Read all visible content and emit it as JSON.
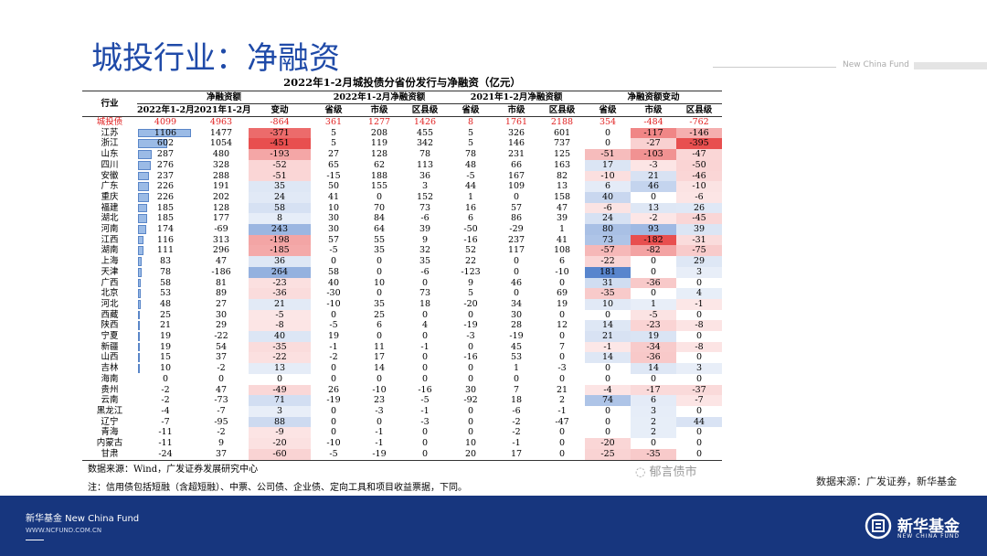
{
  "slide_title": "城投行业：净融资",
  "brand_top": "New China Fund",
  "table": {
    "title": "2022年1-2月城投债分省份发行与净融资（亿元）",
    "header_groups": [
      "行业",
      "净融资额",
      "2022年1-2月净融资额",
      "2021年1-2月净融资额",
      "净融资额变动"
    ],
    "columns": [
      "2022年1-2月",
      "2021年1-2月",
      "变动",
      "省级",
      "市级",
      "区县级",
      "省级",
      "市级",
      "区县级",
      "省级",
      "市级",
      "区县级"
    ],
    "rows": [
      [
        "城投债",
        4099,
        4963,
        -864,
        361,
        1277,
        1426,
        8,
        1761,
        2188,
        354,
        -484,
        -762
      ],
      [
        "江苏",
        1106,
        1477,
        -371,
        5,
        208,
        455,
        5,
        326,
        601,
        0,
        -117,
        -146
      ],
      [
        "浙江",
        602,
        1054,
        -451,
        5,
        119,
        342,
        5,
        146,
        737,
        0,
        -27,
        -395
      ],
      [
        "山东",
        287,
        480,
        -193,
        27,
        128,
        78,
        78,
        231,
        125,
        -51,
        -103,
        -47
      ],
      [
        "四川",
        276,
        328,
        -52,
        65,
        62,
        113,
        48,
        66,
        163,
        17,
        -3,
        -50
      ],
      [
        "安徽",
        237,
        288,
        -51,
        -15,
        188,
        36,
        -5,
        167,
        82,
        -10,
        21,
        -46
      ],
      [
        "广东",
        226,
        191,
        35,
        50,
        155,
        3,
        44,
        109,
        13,
        6,
        46,
        -10
      ],
      [
        "重庆",
        226,
        202,
        24,
        41,
        0,
        152,
        1,
        0,
        158,
        40,
        0,
        -6
      ],
      [
        "福建",
        185,
        128,
        58,
        10,
        70,
        73,
        16,
        57,
        47,
        -6,
        13,
        26
      ],
      [
        "湖北",
        185,
        177,
        8,
        30,
        84,
        -6,
        6,
        86,
        39,
        24,
        -2,
        -45
      ],
      [
        "河南",
        174,
        -69,
        243,
        30,
        64,
        39,
        -50,
        -29,
        1,
        80,
        93,
        39
      ],
      [
        "江西",
        116,
        313,
        -198,
        57,
        55,
        9,
        -16,
        237,
        41,
        73,
        -182,
        -31
      ],
      [
        "湖南",
        111,
        296,
        -185,
        -5,
        35,
        32,
        52,
        117,
        108,
        -57,
        -82,
        -75
      ],
      [
        "上海",
        83,
        47,
        36,
        0,
        0,
        35,
        22,
        0,
        6,
        -22,
        0,
        29
      ],
      [
        "天津",
        78,
        -186,
        264,
        58,
        0,
        -6,
        -123,
        0,
        -10,
        181,
        0,
        3
      ],
      [
        "广西",
        58,
        81,
        -23,
        40,
        10,
        0,
        9,
        46,
        0,
        31,
        -36,
        0
      ],
      [
        "北京",
        53,
        89,
        -36,
        -30,
        0,
        73,
        5,
        0,
        69,
        -35,
        0,
        4
      ],
      [
        "河北",
        48,
        27,
        21,
        -10,
        35,
        18,
        -20,
        34,
        19,
        10,
        1,
        -1
      ],
      [
        "西藏",
        25,
        30,
        -5,
        0,
        25,
        0,
        0,
        30,
        0,
        0,
        -5,
        0
      ],
      [
        "陕西",
        21,
        29,
        -8,
        -5,
        6,
        4,
        -19,
        28,
        12,
        14,
        -23,
        -8
      ],
      [
        "宁夏",
        19,
        -22,
        40,
        19,
        0,
        0,
        -3,
        -19,
        0,
        21,
        19,
        0
      ],
      [
        "新疆",
        19,
        54,
        -35,
        -1,
        11,
        -1,
        0,
        45,
        7,
        -1,
        -34,
        -8
      ],
      [
        "山西",
        15,
        37,
        -22,
        -2,
        17,
        0,
        -16,
        53,
        0,
        14,
        -36,
        0
      ],
      [
        "吉林",
        10,
        -2,
        13,
        0,
        14,
        0,
        0,
        1,
        -3,
        0,
        14,
        3
      ],
      [
        "海南",
        0,
        0,
        0,
        0,
        0,
        0,
        0,
        0,
        0,
        0,
        0,
        0
      ],
      [
        "贵州",
        -2,
        47,
        -49,
        26,
        -10,
        -16,
        30,
        7,
        21,
        -4,
        -17,
        -37
      ],
      [
        "云南",
        -2,
        -73,
        71,
        -19,
        23,
        -5,
        -92,
        18,
        2,
        74,
        6,
        -7
      ],
      [
        "黑龙江",
        -4,
        -7,
        3,
        0,
        -3,
        -1,
        0,
        -6,
        -1,
        0,
        3,
        0
      ],
      [
        "辽宁",
        -7,
        -95,
        88,
        0,
        0,
        -3,
        0,
        -2,
        -47,
        0,
        2,
        44
      ],
      [
        "青海",
        -11,
        -2,
        -9,
        0,
        -1,
        0,
        0,
        -2,
        0,
        0,
        2,
        0
      ],
      [
        "内蒙古",
        -11,
        9,
        -20,
        -10,
        -1,
        0,
        10,
        -1,
        0,
        -20,
        0,
        0
      ],
      [
        "甘肃",
        -24,
        37,
        -60,
        -5,
        -19,
        0,
        20,
        17,
        0,
        -25,
        -35,
        0
      ]
    ]
  },
  "source": "数据来源：Wind，广发证券发展研究中心",
  "note": "注：信用债包括短融（含超短融）、中票、公司债、企业债、定向工具和项目收益票据，下同。",
  "watermark": "郁言债市",
  "source_right": "数据来源：广发证券，新华基金",
  "footer": {
    "brand": "新华基金 New China Fund",
    "url": "WWW.NCFUND.COM.CN",
    "logo_cn": "新华基金",
    "logo_en": "NEW CHINA FUND"
  }
}
